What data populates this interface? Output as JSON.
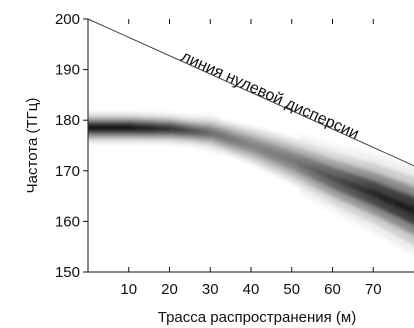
{
  "chart_data": {
    "type": "heatmap",
    "xlabel": "Трасса распространения (м)",
    "ylabel": "Частота (ТГц)",
    "xlim": [
      0,
      80
    ],
    "ylim": [
      150,
      200
    ],
    "x_ticks": [
      10,
      20,
      30,
      40,
      50,
      60,
      70
    ],
    "y_ticks": [
      150,
      160,
      170,
      180,
      190,
      200
    ],
    "grid": false,
    "colormap": "white-to-black",
    "zero_dispersion_line": {
      "label": "линия нулевой дисперсии",
      "points": [
        [
          0,
          200
        ],
        [
          80,
          171
        ]
      ]
    },
    "intensity_ridge": [
      {
        "x": 0,
        "freq": 178.5,
        "intensity": 1.0
      },
      {
        "x": 10,
        "freq": 178.5,
        "intensity": 1.0
      },
      {
        "x": 20,
        "freq": 178.3,
        "intensity": 0.85
      },
      {
        "x": 30,
        "freq": 177.5,
        "intensity": 0.6
      },
      {
        "x": 40,
        "freq": 175.0,
        "intensity": 0.5
      },
      {
        "x": 50,
        "freq": 172.0,
        "intensity": 0.55
      },
      {
        "x": 60,
        "freq": 168.5,
        "intensity": 0.7
      },
      {
        "x": 70,
        "freq": 165.5,
        "intensity": 0.85
      },
      {
        "x": 80,
        "freq": 162.0,
        "intensity": 0.9
      }
    ]
  }
}
